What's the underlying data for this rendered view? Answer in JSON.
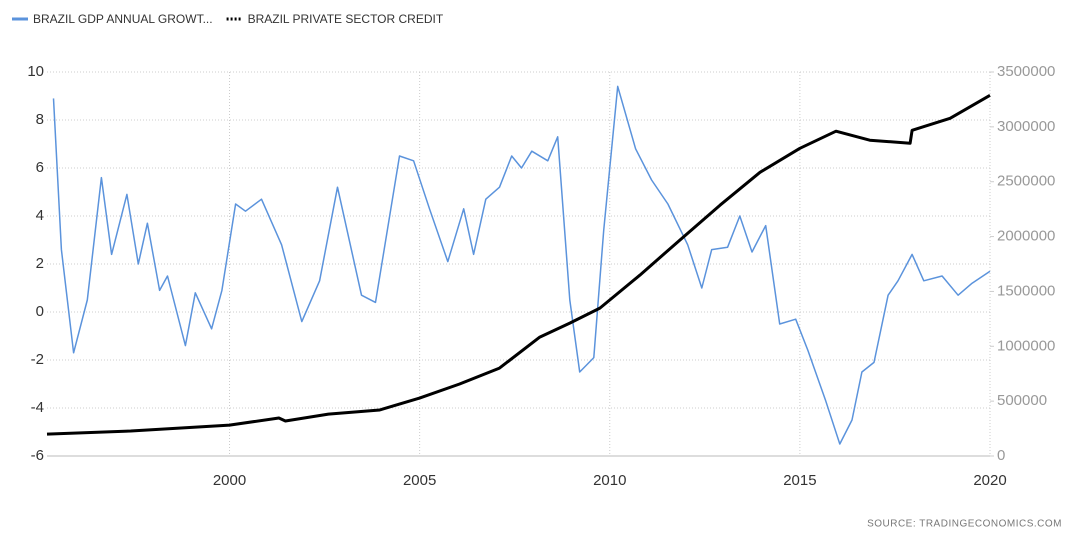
{
  "chart_data": {
    "type": "line",
    "source": "SOURCE:  TRADINGECONOMICS.COM",
    "xlim": [
      1995.2,
      2020
    ],
    "xticks": [
      2000,
      2005,
      2010,
      2015,
      2020
    ],
    "ylim": [
      -6,
      10
    ],
    "yticks": [
      10,
      8,
      6,
      4,
      2,
      0,
      -2,
      -4,
      -6
    ],
    "y2lim": [
      0,
      3500000
    ],
    "y2ticks": [
      3500000,
      3000000,
      2500000,
      2000000,
      1500000,
      1000000,
      500000,
      0
    ],
    "grid": true,
    "series": [
      {
        "name": "BRAZIL GDP ANNUAL GROWT...",
        "color": "#5b93dc",
        "axis": "y",
        "x": [
          1995.37,
          1995.58,
          1995.9,
          1996.26,
          1996.63,
          1996.9,
          1997.3,
          1997.6,
          1997.84,
          1998.16,
          1998.37,
          1998.84,
          1999.1,
          1999.53,
          1999.8,
          2000.16,
          2000.42,
          2000.84,
          2001.37,
          2001.9,
          2002.37,
          2002.84,
          2003.47,
          2003.84,
          2004.47,
          2004.84,
          2005.26,
          2005.74,
          2006.16,
          2006.42,
          2006.74,
          2007.1,
          2007.42,
          2007.68,
          2007.95,
          2008.37,
          2008.63,
          2008.95,
          2009.21,
          2009.58,
          2009.84,
          2010.21,
          2010.68,
          2011.1,
          2011.53,
          2012.05,
          2012.42,
          2012.68,
          2013.1,
          2013.42,
          2013.74,
          2014.1,
          2014.47,
          2014.89,
          2015.21,
          2015.68,
          2016.05,
          2016.37,
          2016.63,
          2016.95,
          2017.32,
          2017.58,
          2017.95,
          2018.26,
          2018.74,
          2019.16,
          2019.53,
          2020.0
        ],
        "values": [
          8.9,
          2.6,
          -1.7,
          0.5,
          5.6,
          2.4,
          4.9,
          2.0,
          3.7,
          0.9,
          1.5,
          -1.4,
          0.8,
          -0.7,
          0.9,
          4.5,
          4.2,
          4.7,
          2.8,
          -0.4,
          1.3,
          5.2,
          0.7,
          0.4,
          6.5,
          6.3,
          4.3,
          2.1,
          4.3,
          2.4,
          4.7,
          5.2,
          6.5,
          6.0,
          6.7,
          6.3,
          7.3,
          0.5,
          -2.5,
          -1.9,
          3.4,
          9.4,
          6.8,
          5.5,
          4.5,
          2.8,
          1.0,
          2.6,
          2.7,
          4.0,
          2.5,
          3.6,
          -0.5,
          -0.3,
          -1.6,
          -3.7,
          -5.5,
          -4.5,
          -2.5,
          -2.1,
          0.7,
          1.3,
          2.4,
          1.3,
          1.5,
          0.7,
          1.2,
          1.7
        ]
      },
      {
        "name": "BRAZIL PRIVATE SECTOR CREDIT",
        "color": "#000000",
        "axis": "y2",
        "x": [
          1995.2,
          1997.4,
          2000,
          2001.3,
          2001.47,
          2002.6,
          2003.95,
          2005,
          2006.05,
          2007.1,
          2008.16,
          2008.95,
          2009.74,
          2010.79,
          2011.84,
          2012.9,
          2013.95,
          2015,
          2015.95,
          2016.84,
          2017.9,
          2017.95,
          2018.95,
          2020
        ],
        "values": [
          200000,
          228000,
          282000,
          346000,
          319000,
          382000,
          419000,
          528000,
          656000,
          801000,
          1084000,
          1211000,
          1348000,
          1648000,
          1967000,
          2286000,
          2586000,
          2805000,
          2960000,
          2878000,
          2850000,
          2969000,
          3078000,
          3288000
        ]
      }
    ]
  }
}
